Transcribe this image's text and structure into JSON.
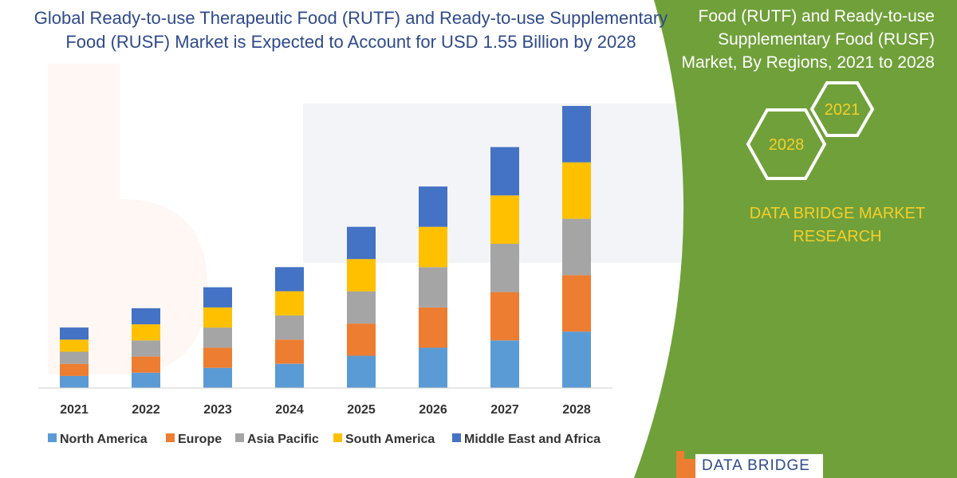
{
  "chart_data": {
    "type": "bar",
    "stacked": true,
    "title": "Global Ready-to-use Therapeutic Food (RUTF) and Ready-to-use Supplementary Food (RUSF) Market is Expected to Account for USD 1.55 Billion by 2028",
    "categories": [
      "2021",
      "2022",
      "2023",
      "2024",
      "2025",
      "2026",
      "2027",
      "2028"
    ],
    "series": [
      {
        "name": "North America",
        "color": "#5b9bd5",
        "values": [
          15,
          19,
          25,
          30,
          40,
          50,
          59,
          70
        ]
      },
      {
        "name": "Europe",
        "color": "#ed7d31",
        "values": [
          15,
          20,
          25,
          30,
          40,
          50,
          60,
          70
        ]
      },
      {
        "name": "Asia Pacific",
        "color": "#a5a5a5",
        "values": [
          15,
          20,
          25,
          30,
          40,
          50,
          60,
          70
        ]
      },
      {
        "name": "South America",
        "color": "#ffc000",
        "values": [
          15,
          20,
          25,
          30,
          40,
          50,
          60,
          70
        ]
      },
      {
        "name": "Middle East and Africa",
        "color": "#4472c4",
        "values": [
          15,
          20,
          25,
          30,
          40,
          50,
          60,
          70
        ]
      }
    ],
    "ylim": [
      0,
      350
    ],
    "grid": false,
    "legend_position": "bottom"
  },
  "sidebar": {
    "title": "Food (RUTF) and Ready-to-use Supplementary Food (RUSF) Market, By Regions, 2021 to 2028",
    "hex_labels": {
      "start": "2021",
      "end": "2028"
    },
    "brand": "DATA BRIDGE MARKET RESEARCH",
    "background_color": "#70a03a",
    "accent_color": "#f5cf2a"
  },
  "logo": {
    "text": "DATA BRIDGE"
  }
}
